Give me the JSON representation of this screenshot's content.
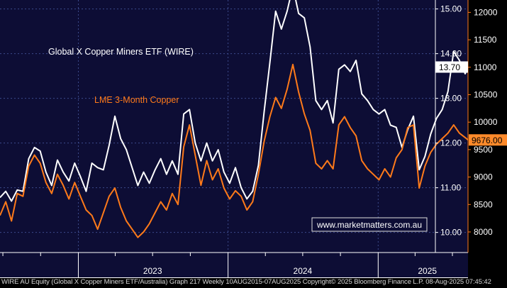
{
  "colors": {
    "background": "#0d0d35",
    "grid": "#3c4a8a",
    "axis_frame": "#ffffff",
    "wire_series": "#ffffff",
    "copper_series": "#ff7a1a",
    "label_box_bg": "#ffffff",
    "copper_label_box_bg": "#ff8a2a",
    "watermark_text": "#ffffff",
    "watermark_border": "#e0e0e0"
  },
  "chart_data": {
    "type": "line",
    "title": "",
    "xlabel": "",
    "ylabel": "",
    "x_tick_labels": [
      "2023",
      "2024",
      "2025"
    ],
    "y_left_ticks": [
      "10.00",
      "11.00",
      "12.00",
      "13.00",
      "14.00",
      "15.00"
    ],
    "y_left_lim": [
      9.55,
      15.2
    ],
    "y_right_ticks": [
      "8000",
      "8500",
      "9000",
      "9500",
      "10000",
      "10500",
      "11000",
      "11500",
      "12000"
    ],
    "y_right_lim": [
      7625,
      12225
    ],
    "x_lim": [
      "2022-06-24",
      "2025-08-08"
    ],
    "grid": true,
    "series": [
      {
        "name": "Global X Copper Miners ETF (WIRE)",
        "axis": "left",
        "color": "#ffffff",
        "last_value_label": "13.70",
        "points": [
          [
            "2022-06-24",
            10.78
          ],
          [
            "2022-07-08",
            10.92
          ],
          [
            "2022-07-22",
            10.7
          ],
          [
            "2022-08-05",
            10.95
          ],
          [
            "2022-08-19",
            10.92
          ],
          [
            "2022-09-02",
            11.65
          ],
          [
            "2022-09-16",
            11.9
          ],
          [
            "2022-09-30",
            11.82
          ],
          [
            "2022-10-14",
            11.35
          ],
          [
            "2022-10-28",
            11.05
          ],
          [
            "2022-11-11",
            11.62
          ],
          [
            "2022-11-25",
            11.35
          ],
          [
            "2022-12-09",
            11.15
          ],
          [
            "2022-12-23",
            11.55
          ],
          [
            "2023-01-06",
            11.25
          ],
          [
            "2023-01-20",
            10.92
          ],
          [
            "2023-02-03",
            11.55
          ],
          [
            "2023-02-17",
            11.45
          ],
          [
            "2023-03-03",
            11.4
          ],
          [
            "2023-03-17",
            11.95
          ],
          [
            "2023-03-31",
            12.6
          ],
          [
            "2023-04-14",
            12.1
          ],
          [
            "2023-04-28",
            11.85
          ],
          [
            "2023-05-12",
            11.45
          ],
          [
            "2023-05-26",
            11.05
          ],
          [
            "2023-06-09",
            11.35
          ],
          [
            "2023-06-23",
            11.1
          ],
          [
            "2023-07-07",
            11.4
          ],
          [
            "2023-07-21",
            11.65
          ],
          [
            "2023-08-04",
            11.3
          ],
          [
            "2023-08-18",
            11.6
          ],
          [
            "2023-09-01",
            11.3
          ],
          [
            "2023-09-15",
            12.65
          ],
          [
            "2023-09-29",
            12.75
          ],
          [
            "2023-10-13",
            12.0
          ],
          [
            "2023-10-27",
            11.6
          ],
          [
            "2023-11-10",
            12.0
          ],
          [
            "2023-11-24",
            11.6
          ],
          [
            "2023-12-08",
            11.85
          ],
          [
            "2023-12-22",
            11.35
          ],
          [
            "2024-01-05",
            11.1
          ],
          [
            "2024-01-19",
            11.45
          ],
          [
            "2024-02-02",
            11.0
          ],
          [
            "2024-02-16",
            10.75
          ],
          [
            "2024-03-01",
            10.92
          ],
          [
            "2024-03-15",
            11.5
          ],
          [
            "2024-03-29",
            12.7
          ],
          [
            "2024-04-12",
            13.8
          ],
          [
            "2024-04-26",
            14.95
          ],
          [
            "2024-05-10",
            14.55
          ],
          [
            "2024-05-24",
            14.95
          ],
          [
            "2024-06-07",
            15.5
          ],
          [
            "2024-06-21",
            14.9
          ],
          [
            "2024-07-05",
            14.8
          ],
          [
            "2024-07-19",
            14.15
          ],
          [
            "2024-08-02",
            12.95
          ],
          [
            "2024-08-16",
            12.75
          ],
          [
            "2024-08-30",
            12.95
          ],
          [
            "2024-09-13",
            12.45
          ],
          [
            "2024-09-27",
            13.65
          ],
          [
            "2024-10-11",
            13.75
          ],
          [
            "2024-10-25",
            13.6
          ],
          [
            "2024-11-08",
            13.85
          ],
          [
            "2024-11-22",
            13.1
          ],
          [
            "2024-12-06",
            12.95
          ],
          [
            "2024-12-20",
            12.75
          ],
          [
            "2025-01-03",
            12.65
          ],
          [
            "2025-01-17",
            12.75
          ],
          [
            "2025-01-31",
            12.4
          ],
          [
            "2025-02-14",
            12.35
          ],
          [
            "2025-02-28",
            11.9
          ],
          [
            "2025-03-14",
            12.3
          ],
          [
            "2025-03-28",
            12.6
          ],
          [
            "2025-04-11",
            11.4
          ],
          [
            "2025-04-25",
            11.7
          ],
          [
            "2025-05-09",
            12.2
          ],
          [
            "2025-05-23",
            12.55
          ],
          [
            "2025-06-06",
            12.75
          ],
          [
            "2025-06-20",
            13.15
          ],
          [
            "2025-07-04",
            14.05
          ],
          [
            "2025-07-18",
            13.85
          ],
          [
            "2025-08-01",
            13.55
          ],
          [
            "2025-08-08",
            13.7
          ]
        ]
      },
      {
        "name": "LME 3-Month Copper",
        "axis": "right",
        "color": "#ff7a1a",
        "last_value_label": "9676.00",
        "points": [
          [
            "2022-06-24",
            8300
          ],
          [
            "2022-07-08",
            8550
          ],
          [
            "2022-07-22",
            8200
          ],
          [
            "2022-08-05",
            8700
          ],
          [
            "2022-08-19",
            8650
          ],
          [
            "2022-09-02",
            9200
          ],
          [
            "2022-09-16",
            9400
          ],
          [
            "2022-09-30",
            9250
          ],
          [
            "2022-10-14",
            8900
          ],
          [
            "2022-10-28",
            8700
          ],
          [
            "2022-11-11",
            9050
          ],
          [
            "2022-11-25",
            8850
          ],
          [
            "2022-12-09",
            8600
          ],
          [
            "2022-12-23",
            8900
          ],
          [
            "2023-01-06",
            8650
          ],
          [
            "2023-01-20",
            8400
          ],
          [
            "2023-02-03",
            8300
          ],
          [
            "2023-02-17",
            8050
          ],
          [
            "2023-03-03",
            8350
          ],
          [
            "2023-03-17",
            8650
          ],
          [
            "2023-03-31",
            8800
          ],
          [
            "2023-04-14",
            8450
          ],
          [
            "2023-04-28",
            8200
          ],
          [
            "2023-05-12",
            8050
          ],
          [
            "2023-05-26",
            7900
          ],
          [
            "2023-06-09",
            8000
          ],
          [
            "2023-06-23",
            8150
          ],
          [
            "2023-07-07",
            8350
          ],
          [
            "2023-07-21",
            8550
          ],
          [
            "2023-08-04",
            8400
          ],
          [
            "2023-08-18",
            8700
          ],
          [
            "2023-09-01",
            8500
          ],
          [
            "2023-09-15",
            9550
          ],
          [
            "2023-09-29",
            9950
          ],
          [
            "2023-10-13",
            9400
          ],
          [
            "2023-10-27",
            8850
          ],
          [
            "2023-11-10",
            9300
          ],
          [
            "2023-11-24",
            8950
          ],
          [
            "2023-12-08",
            9150
          ],
          [
            "2023-12-22",
            8800
          ],
          [
            "2024-01-05",
            8600
          ],
          [
            "2024-01-19",
            8750
          ],
          [
            "2024-02-02",
            8650
          ],
          [
            "2024-02-16",
            8400
          ],
          [
            "2024-03-01",
            8550
          ],
          [
            "2024-03-15",
            9050
          ],
          [
            "2024-03-29",
            9650
          ],
          [
            "2024-04-12",
            10100
          ],
          [
            "2024-04-26",
            10450
          ],
          [
            "2024-05-10",
            10250
          ],
          [
            "2024-05-24",
            10600
          ],
          [
            "2024-06-07",
            11050
          ],
          [
            "2024-06-21",
            10550
          ],
          [
            "2024-07-05",
            10150
          ],
          [
            "2024-07-19",
            9850
          ],
          [
            "2024-08-02",
            9250
          ],
          [
            "2024-08-16",
            9150
          ],
          [
            "2024-08-30",
            9300
          ],
          [
            "2024-09-13",
            9150
          ],
          [
            "2024-09-27",
            9950
          ],
          [
            "2024-10-11",
            10100
          ],
          [
            "2024-10-25",
            9900
          ],
          [
            "2024-11-08",
            9750
          ],
          [
            "2024-11-22",
            9300
          ],
          [
            "2024-12-06",
            9150
          ],
          [
            "2024-12-20",
            9050
          ],
          [
            "2025-01-03",
            8950
          ],
          [
            "2025-01-17",
            9150
          ],
          [
            "2025-01-31",
            9000
          ],
          [
            "2025-02-14",
            9350
          ],
          [
            "2025-02-28",
            9500
          ],
          [
            "2025-03-14",
            9900
          ],
          [
            "2025-03-28",
            9950
          ],
          [
            "2025-04-11",
            8800
          ],
          [
            "2025-04-25",
            9200
          ],
          [
            "2025-05-09",
            9450
          ],
          [
            "2025-05-23",
            9600
          ],
          [
            "2025-06-06",
            9700
          ],
          [
            "2025-06-20",
            9800
          ],
          [
            "2025-07-04",
            9950
          ],
          [
            "2025-07-18",
            9800
          ],
          [
            "2025-08-01",
            9720
          ],
          [
            "2025-08-08",
            9676
          ]
        ]
      }
    ]
  },
  "annotations": {
    "wire_legend": "Global X Copper Miners ETF (WIRE)",
    "copper_legend": "LME 3-Month Copper",
    "watermark": "www.marketmatters.com.au"
  },
  "footer": {
    "text": "WIRE AU Equity (Global X Copper Miners ETF/Australia) Graph 217  Weekly 10AUG2015-07AUG2025  Copyright© 2025 Bloomberg Finance L.P.   08-Aug-2025 07:45:42"
  }
}
